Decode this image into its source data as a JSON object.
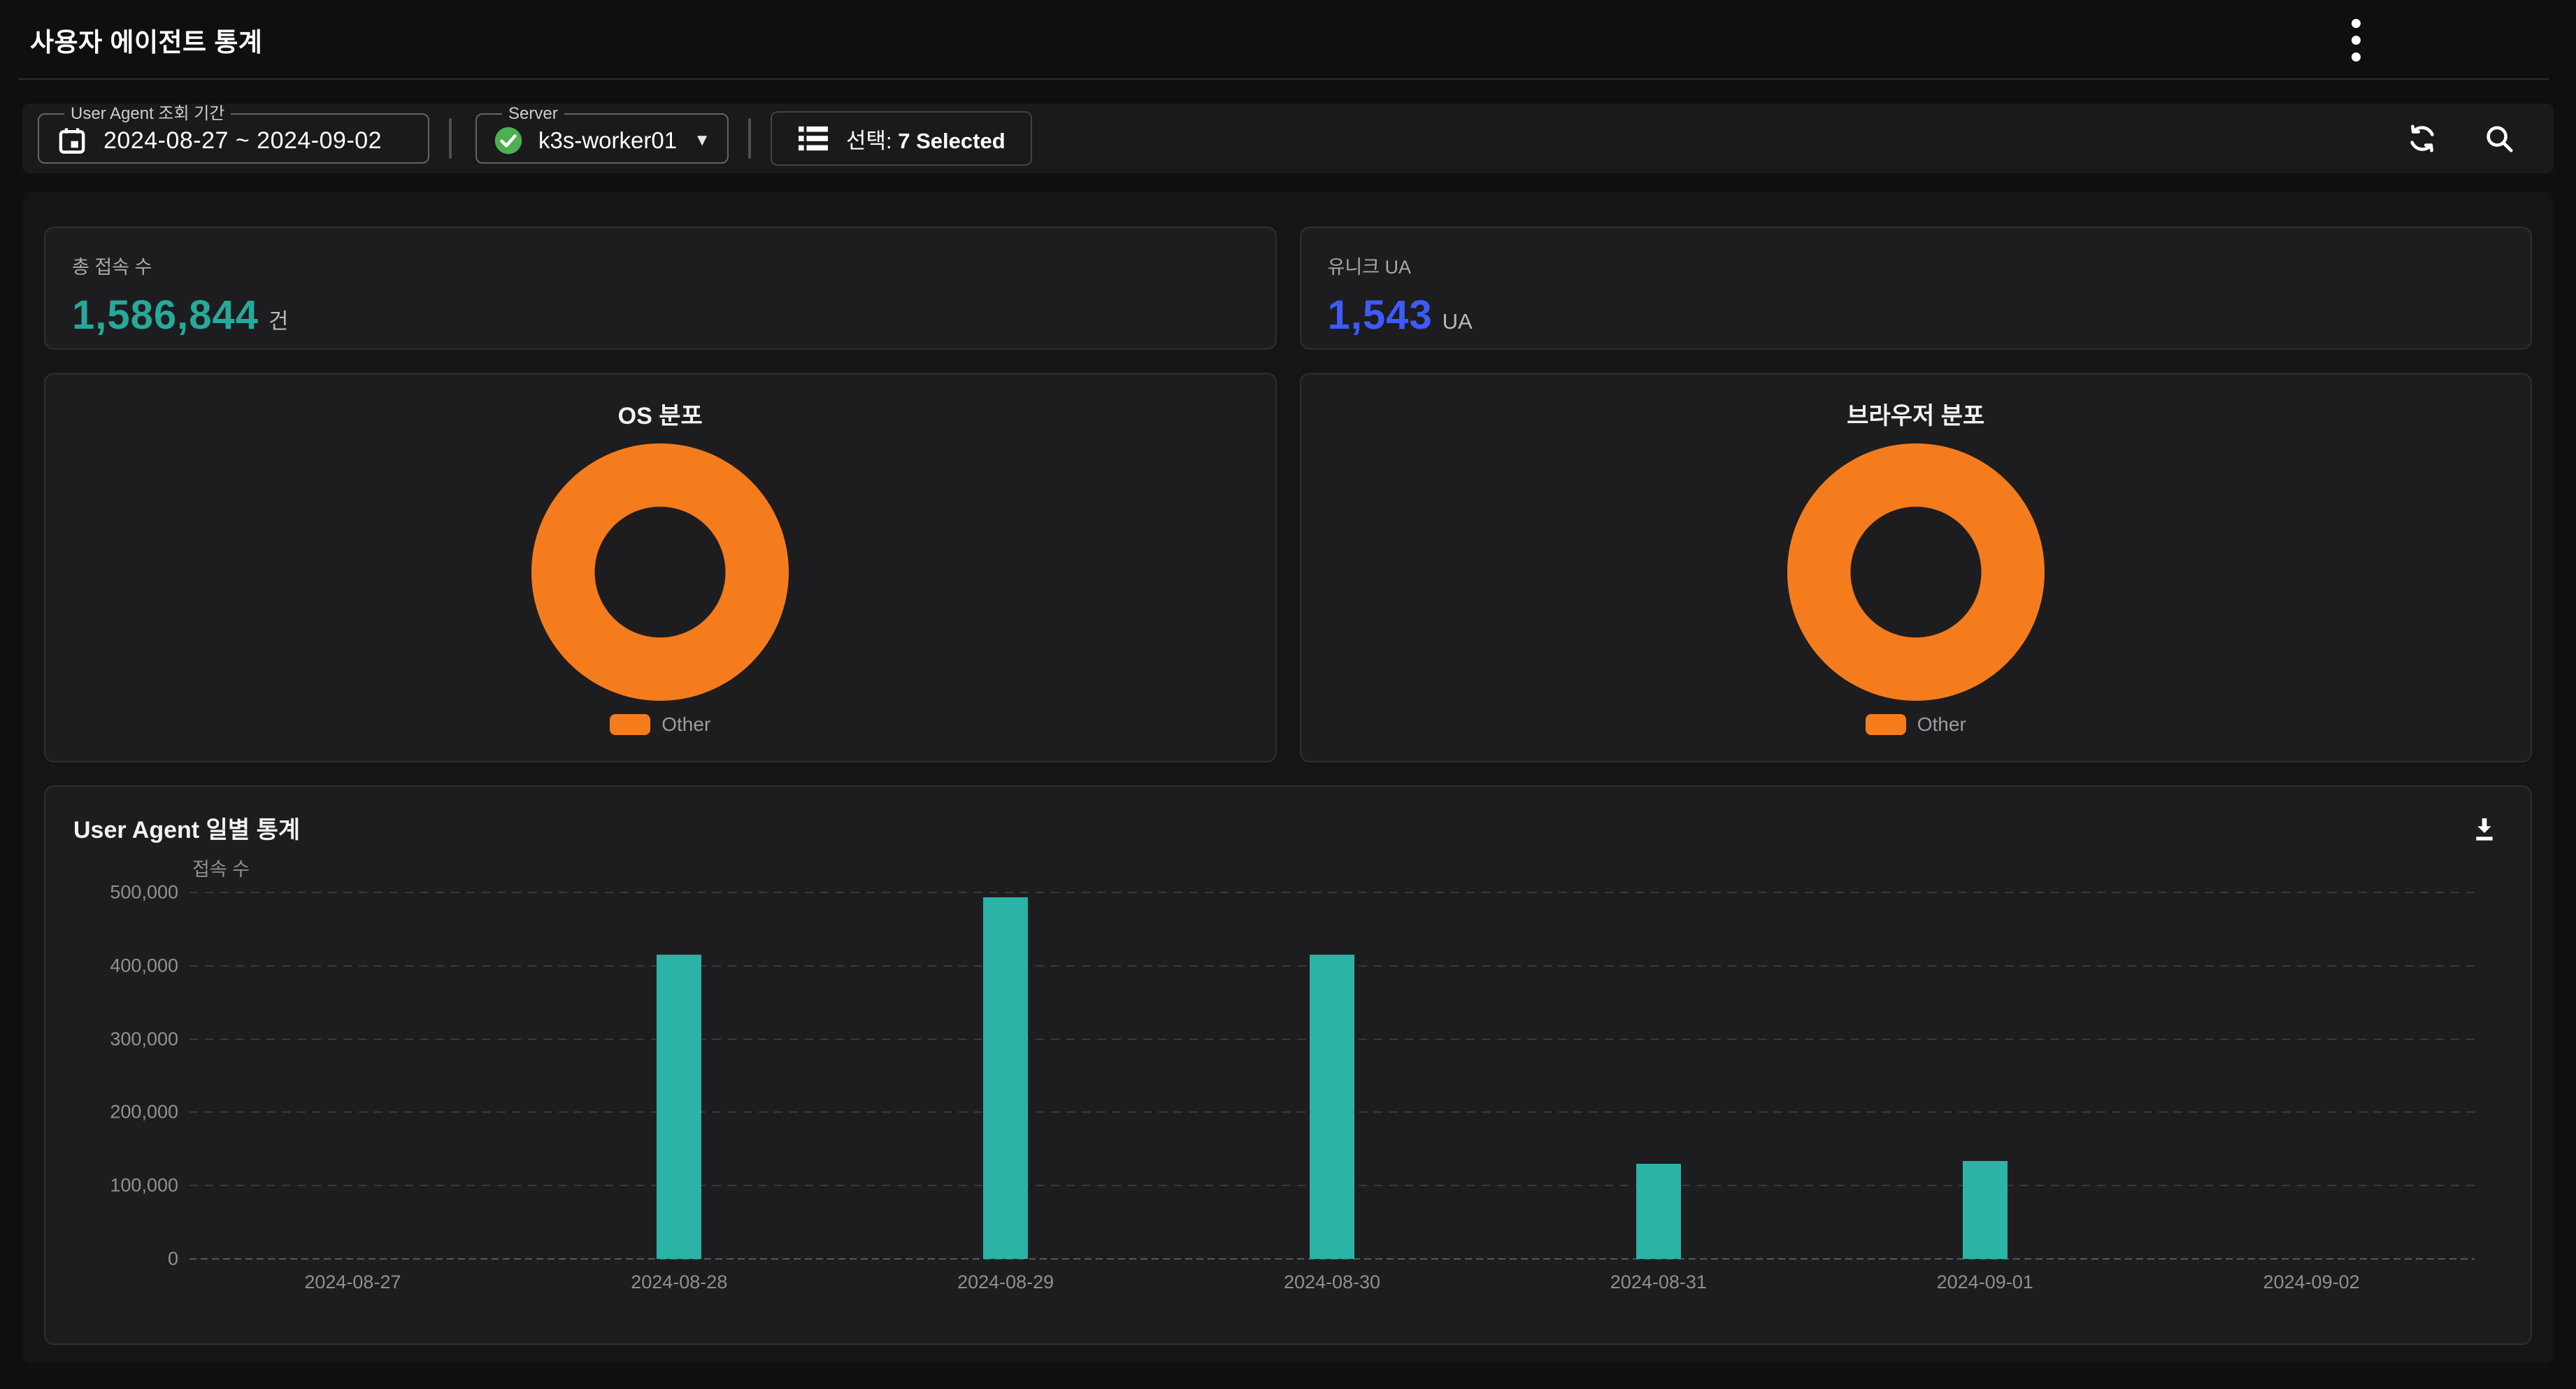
{
  "header": {
    "title": "사용자 에이전트 통계"
  },
  "filters": {
    "date_range": {
      "label": "User Agent 조회 기간",
      "value": "2024-08-27 ~ 2024-09-02"
    },
    "server": {
      "label": "Server",
      "value": "k3s-worker01",
      "status_color": "#4CAF50"
    },
    "selection": {
      "prefix": "선택:",
      "count_text": "7 Selected"
    }
  },
  "stats": [
    {
      "label": "총 접속 수",
      "value": "1,586,844",
      "unit": "건",
      "color": "#27A89A"
    },
    {
      "label": "유니크 UA",
      "value": "1,543",
      "unit": "UA",
      "color": "#3D5BFD"
    }
  ],
  "chart_data": [
    {
      "type": "pie",
      "title": "OS 분포",
      "labels": [
        "Other"
      ],
      "values": [
        100
      ],
      "colors": [
        "#F57C1D"
      ],
      "donut": true,
      "legend_position": "bottom"
    },
    {
      "type": "pie",
      "title": "브라우저 분포",
      "labels": [
        "Other"
      ],
      "values": [
        100
      ],
      "colors": [
        "#F57C1D"
      ],
      "donut": true,
      "legend_position": "bottom"
    },
    {
      "type": "bar",
      "title": "User Agent 일별 통계",
      "ylabel": "접속 수",
      "categories": [
        "2024-08-27",
        "2024-08-28",
        "2024-08-29",
        "2024-08-30",
        "2024-08-31",
        "2024-09-01",
        "2024-09-02"
      ],
      "values": [
        0,
        415000,
        493000,
        415000,
        130000,
        134000,
        0
      ],
      "ylim": [
        0,
        500000
      ],
      "ytick_step": 100000,
      "bar_color": "#2BB3A6",
      "grid": "dashed"
    }
  ]
}
